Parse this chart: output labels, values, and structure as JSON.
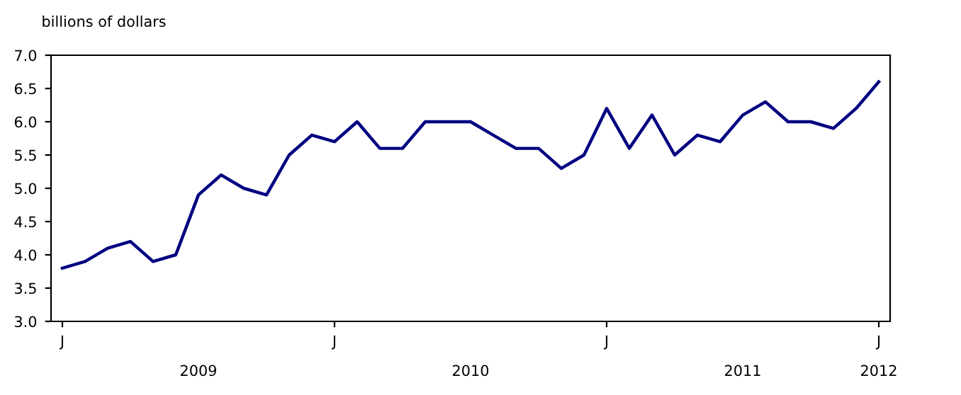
{
  "chart_data": {
    "type": "line",
    "ylabel": "billions of dollars",
    "categories": [
      "J",
      null,
      null,
      null,
      null,
      null,
      null,
      null,
      null,
      null,
      null,
      null,
      "J",
      null,
      null,
      null,
      null,
      null,
      null,
      null,
      null,
      null,
      null,
      null,
      "J",
      null,
      null,
      null,
      null,
      null,
      null,
      null,
      null,
      null,
      null,
      null,
      "J"
    ],
    "series": [
      {
        "color": "#000080",
        "values": [
          3.8,
          3.9,
          4.1,
          4.2,
          3.9,
          4.0,
          4.9,
          5.2,
          5.0,
          4.9,
          5.5,
          5.8,
          5.7,
          6.0,
          5.6,
          5.6,
          6.0,
          6.0,
          6.0,
          5.8,
          5.6,
          5.6,
          5.3,
          5.5,
          6.2,
          5.6,
          6.1,
          5.5,
          5.8,
          5.7,
          6.1,
          6.3,
          6.0,
          6.0,
          5.9,
          6.2,
          6.6
        ]
      }
    ],
    "ylim": [
      3.0,
      7.0
    ],
    "yticks": [
      {
        "value": 3.0,
        "label": "3.0"
      },
      {
        "value": 3.5,
        "label": "3.5"
      },
      {
        "value": 4.0,
        "label": "4.0"
      },
      {
        "value": 4.5,
        "label": "4.5"
      },
      {
        "value": 5.0,
        "label": "5.0"
      },
      {
        "value": 5.5,
        "label": "5.5"
      },
      {
        "value": 6.0,
        "label": "6.0"
      },
      {
        "value": 6.5,
        "label": "6.5"
      },
      {
        "value": 7.0,
        "label": "7.0"
      }
    ],
    "annotations": [
      "2009",
      "2010",
      "2011",
      "2012"
    ],
    "marker": "none",
    "line_style": "solid"
  }
}
